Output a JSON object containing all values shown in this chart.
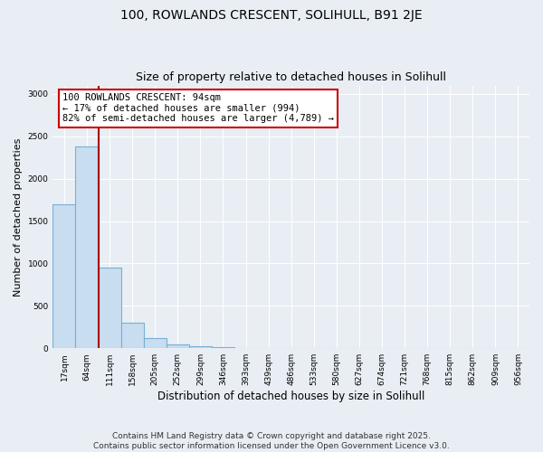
{
  "title1": "100, ROWLANDS CRESCENT, SOLIHULL, B91 2JE",
  "title2": "Size of property relative to detached houses in Solihull",
  "xlabel": "Distribution of detached houses by size in Solihull",
  "ylabel": "Number of detached properties",
  "categories": [
    "17sqm",
    "64sqm",
    "111sqm",
    "158sqm",
    "205sqm",
    "252sqm",
    "299sqm",
    "346sqm",
    "393sqm",
    "439sqm",
    "486sqm",
    "533sqm",
    "580sqm",
    "627sqm",
    "674sqm",
    "721sqm",
    "768sqm",
    "815sqm",
    "862sqm",
    "909sqm",
    "956sqm"
  ],
  "values": [
    1700,
    2380,
    950,
    300,
    120,
    50,
    20,
    8,
    3,
    2,
    1,
    0,
    0,
    0,
    0,
    0,
    0,
    0,
    0,
    0,
    0
  ],
  "bar_color": "#c8ddf0",
  "bar_edge_color": "#7aafd4",
  "vline_color": "#aa0000",
  "annotation_text": "100 ROWLANDS CRESCENT: 94sqm\n← 17% of detached houses are smaller (994)\n82% of semi-detached houses are larger (4,789) →",
  "annotation_box_color": "#cc0000",
  "annotation_text_color": "black",
  "annotation_bg": "white",
  "ylim": [
    0,
    3100
  ],
  "yticks": [
    0,
    500,
    1000,
    1500,
    2000,
    2500,
    3000
  ],
  "bg_color": "#e8eef4",
  "grid_color": "white",
  "footnote": "Contains HM Land Registry data © Crown copyright and database right 2025.\nContains public sector information licensed under the Open Government Licence v3.0.",
  "title1_fontsize": 10,
  "title2_fontsize": 9,
  "xlabel_fontsize": 8.5,
  "ylabel_fontsize": 8,
  "tick_fontsize": 6.5,
  "annotation_fontsize": 7.5,
  "footnote_fontsize": 6.5
}
